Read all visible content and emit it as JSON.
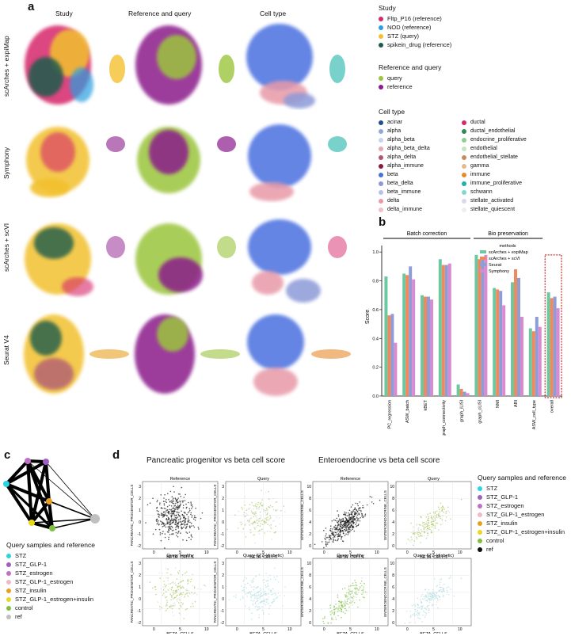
{
  "panels": {
    "a": "a",
    "b": "b",
    "c": "c",
    "d": "d"
  },
  "panel_a": {
    "columns": [
      "Study",
      "Reference and query",
      "Cell type"
    ],
    "rows": [
      "scArches + expiMap",
      "Symphony",
      "scArches + scVI",
      "Seurat V4"
    ],
    "legend_study": {
      "title": "Study",
      "items": [
        {
          "label": "Fltp_P16 (reference)",
          "color": "#d6286c"
        },
        {
          "label": "NOD (reference)",
          "color": "#2a9fe0"
        },
        {
          "label": "STZ (query)",
          "color": "#f2c12e"
        },
        {
          "label": "spikein_drug (reference)",
          "color": "#1a5c4c"
        }
      ]
    },
    "legend_refquery": {
      "title": "Reference and query",
      "items": [
        {
          "label": "query",
          "color": "#9bc53d"
        },
        {
          "label": "reference",
          "color": "#8b1a8b"
        }
      ]
    },
    "legend_celltype": {
      "title": "Cell type",
      "col1": [
        {
          "label": "acinar",
          "color": "#1f4e8c"
        },
        {
          "label": "alpha",
          "color": "#8fa8d8"
        },
        {
          "label": "alpha_beta",
          "color": "#c8d3ee"
        },
        {
          "label": "alpha_beta_delta",
          "color": "#e8a8b8"
        },
        {
          "label": "alpha_delta",
          "color": "#b0527a"
        },
        {
          "label": "alpha_immune",
          "color": "#8b1a3a"
        },
        {
          "label": "beta",
          "color": "#4a6fe0"
        },
        {
          "label": "beta_delta",
          "color": "#8c9ad8"
        },
        {
          "label": "beta_immune",
          "color": "#b8c2e8"
        },
        {
          "label": "delta",
          "color": "#e89aa8"
        },
        {
          "label": "delta_immune",
          "color": "#f0c0c8"
        }
      ],
      "col2": [
        {
          "label": "ductal",
          "color": "#d6286c"
        },
        {
          "label": "ductal_endothelial",
          "color": "#2e8b57"
        },
        {
          "label": "endocrine_proliferative",
          "color": "#8ccf8c"
        },
        {
          "label": "endothelial",
          "color": "#c0e8c0"
        },
        {
          "label": "endothelial_stellate",
          "color": "#c88a5a"
        },
        {
          "label": "gamma",
          "color": "#e8b888"
        },
        {
          "label": "immune",
          "color": "#e88a2a"
        },
        {
          "label": "immune_proliferative",
          "color": "#20b2aa"
        },
        {
          "label": "schwann",
          "color": "#80d8d0"
        },
        {
          "label": "stellate_activated",
          "color": "#d8d8e8"
        },
        {
          "label": "stellate_quiescent",
          "color": "#eeeeee"
        }
      ]
    }
  },
  "chart_data": [
    {
      "type": "bar",
      "ylabel": "Score",
      "ylim": [
        0,
        1.1
      ],
      "yticks": [
        "0.0",
        "0.2",
        "0.4",
        "0.6",
        "0.8",
        "1.0"
      ],
      "groups": [
        {
          "label": "Batch correction"
        },
        {
          "label": "Bio preservation"
        }
      ],
      "categories": [
        "PC_regression",
        "ASW_batch",
        "kBET",
        "graph_connectivity",
        "graph_iLISI",
        "graph_cLISI",
        "NMI",
        "ARI",
        "ASW_cell_type",
        "overall"
      ],
      "legend_title": "methods",
      "series": [
        {
          "name": "scArches + expiMap",
          "color": "#6cc8a0",
          "values": [
            0.83,
            0.85,
            0.7,
            0.95,
            0.08,
            0.98,
            0.75,
            0.79,
            0.47,
            0.72
          ]
        },
        {
          "name": "scArches + scVI",
          "color": "#f08a5d",
          "values": [
            0.56,
            0.84,
            0.69,
            0.91,
            0.05,
            0.95,
            0.74,
            0.88,
            0.45,
            0.68
          ]
        },
        {
          "name": "Seurat",
          "color": "#8e9dd6",
          "values": [
            0.57,
            0.9,
            0.69,
            0.91,
            0.03,
            0.95,
            0.73,
            0.82,
            0.55,
            0.69
          ]
        },
        {
          "name": "Symphony",
          "color": "#d98ad0",
          "values": [
            0.37,
            0.81,
            0.67,
            0.92,
            0.02,
            0.98,
            0.63,
            0.55,
            0.48,
            0.61
          ]
        }
      ]
    }
  ],
  "panel_c": {
    "legend_title": "Query samples and reference",
    "items": [
      {
        "label": "STZ",
        "color": "#2bd4e0"
      },
      {
        "label": "STZ_GLP-1",
        "color": "#a060c0"
      },
      {
        "label": "STZ_estrogen",
        "color": "#c070c8"
      },
      {
        "label": "STZ_GLP-1_estrogen",
        "color": "#f0b8c8"
      },
      {
        "label": "STZ_insulin",
        "color": "#e8a020"
      },
      {
        "label": "STZ_GLP-1_estrogen+insulin",
        "color": "#e8d820"
      },
      {
        "label": "control",
        "color": "#80c040"
      },
      {
        "label": "ref",
        "color": "#c0c0c0"
      }
    ]
  },
  "panel_d": {
    "left_title": "Pancreatic progenitor vs beta cell score",
    "right_title": "Enteroendocrine vs beta cell score",
    "legend_title": "Query samples and reference",
    "legend_items": [
      {
        "label": "STZ",
        "color": "#2bd4e0"
      },
      {
        "label": "STZ_GLP-1",
        "color": "#a060c0"
      },
      {
        "label": "STZ_estrogen",
        "color": "#c070c8"
      },
      {
        "label": "STZ_GLP-1_estrogen",
        "color": "#f0b8c8"
      },
      {
        "label": "STZ_insulin",
        "color": "#e8a020"
      },
      {
        "label": "STZ_GLP-1_estrogen+insulin",
        "color": "#e8d820"
      },
      {
        "label": "control",
        "color": "#80c040"
      },
      {
        "label": "ref",
        "color": "#111111"
      }
    ],
    "subplot_titles": [
      "Reference",
      "Query",
      "Query healthy",
      "Query STZ (diabetic)"
    ],
    "xlabel": "BETA_CELLS",
    "ylabel_left": "PANCREATIC_PROGENITOR_CELLS",
    "ylabel_right": "ENTEROENDOCRINE_CELLS",
    "left_yticks": [
      "3",
      "2",
      "1",
      "0",
      "-1",
      "-2"
    ],
    "right_yticks": [
      "10",
      "8",
      "6",
      "4",
      "2",
      "0"
    ],
    "xticks": [
      "0",
      "5",
      "10"
    ]
  }
}
